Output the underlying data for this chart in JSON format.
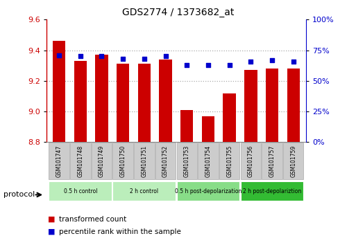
{
  "title": "GDS2774 / 1373682_at",
  "samples": [
    "GSM101747",
    "GSM101748",
    "GSM101749",
    "GSM101750",
    "GSM101751",
    "GSM101752",
    "GSM101753",
    "GSM101754",
    "GSM101755",
    "GSM101756",
    "GSM101757",
    "GSM101759"
  ],
  "transformed_count": [
    9.46,
    9.33,
    9.37,
    9.31,
    9.31,
    9.34,
    9.01,
    8.97,
    9.12,
    9.27,
    9.28,
    9.28
  ],
  "percentile_rank": [
    71,
    70,
    70,
    68,
    68,
    70,
    63,
    63,
    63,
    66,
    67,
    66
  ],
  "ylim": [
    8.8,
    9.6
  ],
  "yticks": [
    8.8,
    9.0,
    9.2,
    9.4,
    9.6
  ],
  "y2lim": [
    0,
    100
  ],
  "y2ticks": [
    0,
    25,
    50,
    75,
    100
  ],
  "bar_color": "#cc0000",
  "dot_color": "#0000cc",
  "bar_bottom": 8.8,
  "groups": [
    {
      "label": "0.5 h control",
      "start": 0,
      "end": 3,
      "color": "#bbeebb"
    },
    {
      "label": "2 h control",
      "start": 3,
      "end": 6,
      "color": "#bbeebb"
    },
    {
      "label": "0.5 h post-depolarization",
      "start": 6,
      "end": 9,
      "color": "#88dd88"
    },
    {
      "label": "2 h post-depolariztion",
      "start": 9,
      "end": 12,
      "color": "#33bb33"
    }
  ],
  "protocol_label": "protocol",
  "ylabel_left_color": "#cc0000",
  "ylabel_right_color": "#0000cc",
  "grid_color": "#aaaaaa",
  "tick_label_bg": "#cccccc",
  "legend_entries": [
    "transformed count",
    "percentile rank within the sample"
  ]
}
